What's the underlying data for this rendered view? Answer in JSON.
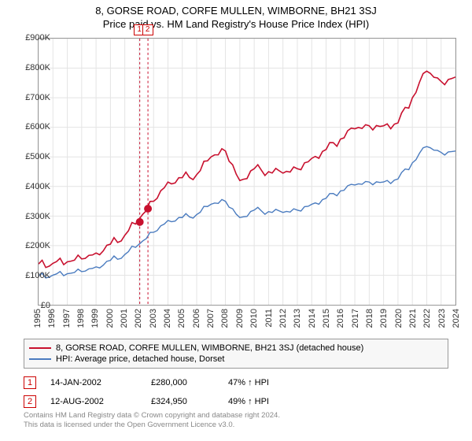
{
  "title": "8, GORSE ROAD, CORFE MULLEN, WIMBORNE, BH21 3SJ",
  "subtitle": "Price paid vs. HM Land Registry's House Price Index (HPI)",
  "chart": {
    "type": "line",
    "x_years": [
      1995,
      1996,
      1997,
      1998,
      1999,
      2000,
      2001,
      2002,
      2003,
      2004,
      2005,
      2006,
      2007,
      2008,
      2009,
      2010,
      2011,
      2012,
      2013,
      2014,
      2015,
      2016,
      2017,
      2018,
      2019,
      2020,
      2021,
      2022,
      2023,
      2024
    ],
    "ylim": [
      0,
      900000
    ],
    "ytick_step": 100000,
    "ytick_labels": [
      "£0",
      "£100K",
      "£200K",
      "£300K",
      "£400K",
      "£500K",
      "£600K",
      "£700K",
      "£800K",
      "£900K"
    ],
    "background_color": "#ffffff",
    "grid_color": "#e4e4e4",
    "axis_color": "#999999",
    "label_fontsize": 11,
    "title_fontsize": 13,
    "series": [
      {
        "name": "property",
        "label": "8, GORSE ROAD, CORFE MULLEN, WIMBORNE, BH21 3SJ (detached house)",
        "color": "#c8102e",
        "line_width": 1.6,
        "values": [
          138000,
          140000,
          145000,
          155000,
          175000,
          205000,
          235000,
          290000,
          350000,
          415000,
          430000,
          440000,
          500000,
          520000,
          420000,
          460000,
          450000,
          445000,
          460000,
          495000,
          525000,
          560000,
          595000,
          605000,
          605000,
          615000,
          700000,
          790000,
          755000,
          770000
        ]
      },
      {
        "name": "hpi",
        "label": "HPI: Average price, detached house, Dorset",
        "color": "#4a7bbf",
        "line_width": 1.4,
        "values": [
          98000,
          100000,
          105000,
          112000,
          128000,
          150000,
          170000,
          205000,
          245000,
          285000,
          295000,
          305000,
          340000,
          350000,
          295000,
          320000,
          315000,
          312000,
          320000,
          340000,
          360000,
          385000,
          405000,
          415000,
          415000,
          425000,
          480000,
          535000,
          515000,
          520000
        ]
      }
    ],
    "events": [
      {
        "num": "1",
        "year": 2002.04,
        "value": 280000,
        "date": "14-JAN-2002",
        "price": "£280,000",
        "pct_vs_hpi": "47% ↑ HPI",
        "marker_color": "#c8102e",
        "marker_size": 5
      },
      {
        "num": "2",
        "year": 2002.61,
        "value": 324950,
        "date": "12-AUG-2002",
        "price": "£324,950",
        "pct_vs_hpi": "49% ↑ HPI",
        "marker_color": "#c8102e",
        "marker_size": 5
      }
    ],
    "vline_color": "#c8102e",
    "vline_dash": "3,3"
  },
  "license": {
    "line1": "Contains HM Land Registry data © Crown copyright and database right 2024.",
    "line2": "This data is licensed under the Open Government Licence v3.0."
  }
}
